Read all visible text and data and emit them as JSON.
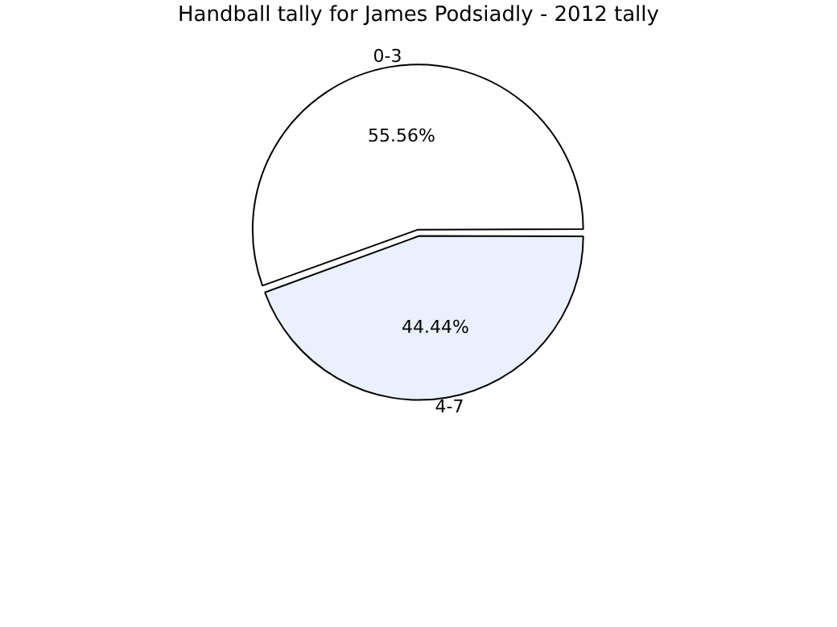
{
  "chart_data": {
    "type": "pie",
    "title": "Handball tally for James Podsiadly - 2012 tally",
    "categories": [
      "0-3",
      "4-7"
    ],
    "values": [
      55.56,
      44.44
    ],
    "colors": [
      "#ffffff",
      "#eaf0fd"
    ],
    "value_labels": [
      "55.56%",
      "44.44%"
    ],
    "legend": false
  }
}
